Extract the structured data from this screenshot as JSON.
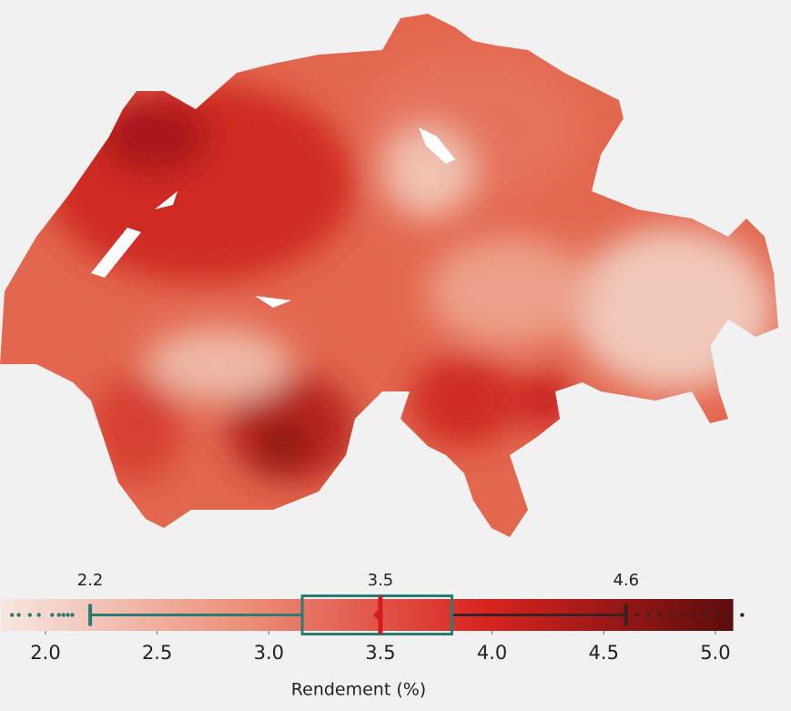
{
  "chart_data": {
    "type": "choropleth",
    "xlabel": "Rendement (%)",
    "colorbar": {
      "range": [
        1.8,
        5.08
      ],
      "colors": [
        "#f6e6e0",
        "#ec8f78",
        "#d7231f",
        "#5c0d0d"
      ]
    },
    "xticks": [
      {
        "value": 2,
        "label": "2.0"
      },
      2.5,
      {
        "value": 3,
        "label": "3.0"
      },
      3.5,
      {
        "value": 4,
        "label": "4.0"
      },
      4.5,
      {
        "value": 5,
        "label": "5.0"
      }
    ],
    "box": {
      "whisker_low": 2.2,
      "q1": 3.15,
      "median": 3.5,
      "q3": 3.82,
      "whisker_high": 4.6,
      "color": "#2b7b75",
      "median_color": "#d01c1c",
      "outliers": [
        1.85,
        1.88,
        1.93,
        1.97,
        2.03,
        2.06,
        2.08,
        2.1,
        2.12,
        4.65,
        4.7,
        4.75,
        4.8,
        4.85,
        4.9,
        4.95,
        5.0,
        5.05,
        5.12
      ]
    }
  }
}
